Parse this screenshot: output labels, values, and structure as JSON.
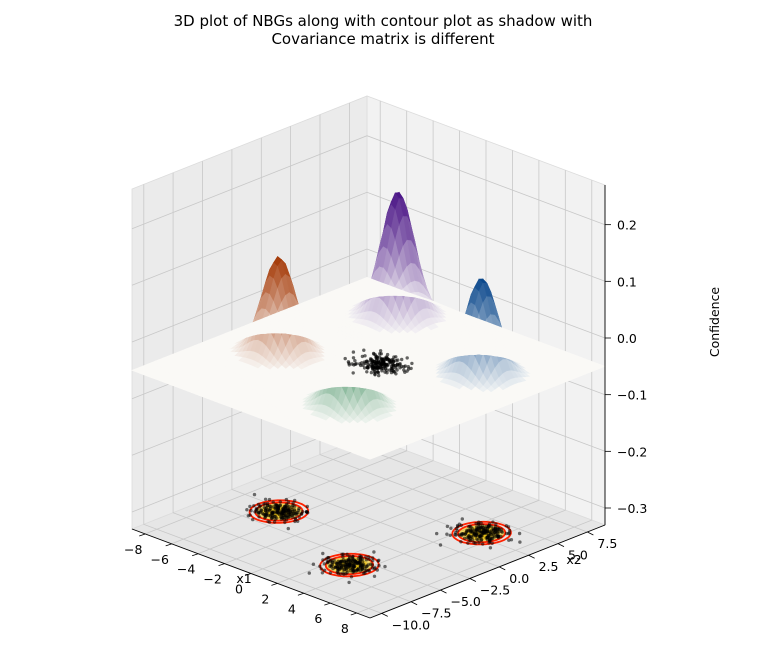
{
  "chart_data": {
    "type": "surface-3d",
    "title_lines": [
      "3D plot of NBGs along with contour plot as shadow with",
      "Covariance matrix is different"
    ],
    "xlabel": "x1",
    "ylabel": "x2",
    "zlabel": "Confidence",
    "xlim": [
      -9,
      9
    ],
    "ylim": [
      -11,
      9
    ],
    "zlim": [
      -0.33,
      0.27
    ],
    "x_ticks": [
      -8,
      -6,
      -4,
      -2,
      0,
      2,
      4,
      6,
      8
    ],
    "x_tick_labels": [
      "−8",
      "−6",
      "−4",
      "−2",
      "0",
      "2",
      "4",
      "6",
      "8"
    ],
    "y_ticks": [
      -10,
      -7.5,
      -5,
      -2.5,
      0,
      2.5,
      5,
      7.5
    ],
    "y_tick_labels": [
      "−10.0",
      "−7.5",
      "−5.0",
      "−2.5",
      "0.0",
      "2.5",
      "5.0",
      "7.5"
    ],
    "z_ticks": [
      -0.3,
      -0.2,
      -0.1,
      0.0,
      0.1,
      0.2
    ],
    "z_tick_labels": [
      "−0.3",
      "−0.2",
      "−0.1",
      "0.0",
      "0.1",
      "0.2"
    ],
    "grid": true,
    "surface_plane_z": -0.05,
    "floor_z": -0.33,
    "gaussians": [
      {
        "colormap": "Oranges",
        "color": "#a33603",
        "mean": [
          -5,
          -3
        ],
        "peak": 0.17
      },
      {
        "colormap": "Purples",
        "color": "#4a1486",
        "mean": [
          -4,
          6
        ],
        "peak": 0.22
      },
      {
        "colormap": "Greens",
        "color": "#00692a",
        "mean": [
          3,
          -6
        ],
        "peak": 0.17
      },
      {
        "colormap": "Blues",
        "color": "#08468b",
        "mean": [
          5,
          3
        ],
        "peak": 0.17
      }
    ],
    "point_clouds": [
      {
        "center": [
          0,
          0
        ],
        "z": "surface",
        "count": 200
      },
      {
        "center": [
          -5,
          -3
        ],
        "z": "floor",
        "count": 200
      },
      {
        "center": [
          3,
          -6
        ],
        "z": "floor",
        "count": 200
      },
      {
        "center": [
          5,
          3
        ],
        "z": "floor",
        "count": 200
      }
    ],
    "contour_colors": [
      "#ff2200",
      "#ffaa00"
    ],
    "point_color": "#000000"
  }
}
